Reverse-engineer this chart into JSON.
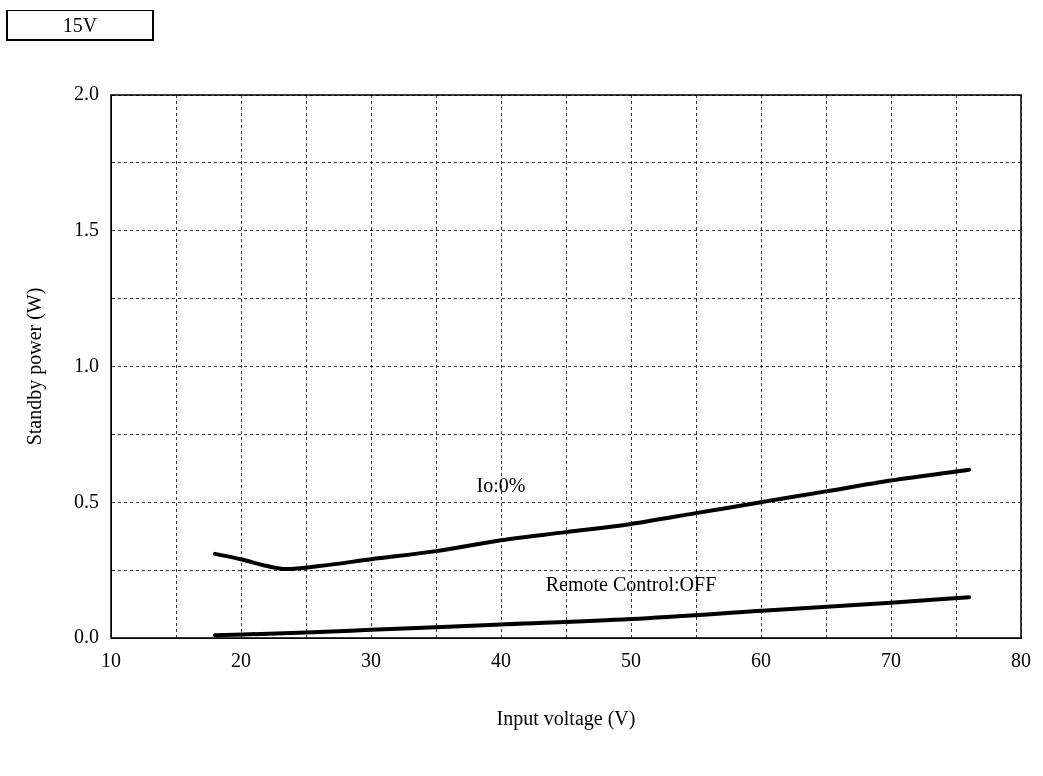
{
  "chart_data": {
    "type": "line",
    "xlabel": "Input voltage (V)",
    "ylabel": "Standby power (W)",
    "annotations": [
      "15V"
    ],
    "xlim": [
      10,
      80
    ],
    "xticks": [
      10,
      {
        "value": 15,
        "label": null
      },
      20,
      {
        "value": 25,
        "label": null
      },
      30,
      {
        "value": 35,
        "label": null
      },
      40,
      {
        "value": 45,
        "label": null
      },
      50,
      {
        "value": 55,
        "label": null
      },
      60,
      {
        "value": 65,
        "label": null
      },
      70,
      {
        "value": 75,
        "label": null
      },
      80
    ],
    "ylim": [
      0,
      2
    ],
    "yticks": [
      {
        "value": 0,
        "label": "0.0"
      },
      {
        "value": 0.25,
        "label": null
      },
      {
        "value": 0.5,
        "label": "0.5"
      },
      {
        "value": 0.75,
        "label": null
      },
      {
        "value": 1,
        "label": "1.0"
      },
      {
        "value": 1.25,
        "label": null
      },
      {
        "value": 1.5,
        "label": "1.5"
      },
      {
        "value": 1.75,
        "label": null
      },
      {
        "value": 2,
        "label": "2.0"
      }
    ],
    "grid": true,
    "legend": false,
    "marker": "none",
    "line_style": "solid",
    "series": [
      {
        "name": "Io:0%",
        "color": "#000000",
        "x": [
          18,
          20,
          22,
          23.5,
          26,
          30,
          35,
          40,
          45,
          50,
          55,
          60,
          65,
          70,
          76
        ],
        "values": [
          0.31,
          0.29,
          0.265,
          0.254,
          0.265,
          0.29,
          0.32,
          0.36,
          0.39,
          0.42,
          0.46,
          0.5,
          0.54,
          0.58,
          0.62
        ]
      },
      {
        "name": "Remote Control:OFF",
        "color": "#000000",
        "x": [
          18,
          25,
          30,
          40,
          50,
          60,
          70,
          76
        ],
        "values": [
          0.01,
          0.02,
          0.03,
          0.05,
          0.07,
          0.1,
          0.13,
          0.15
        ]
      }
    ]
  }
}
